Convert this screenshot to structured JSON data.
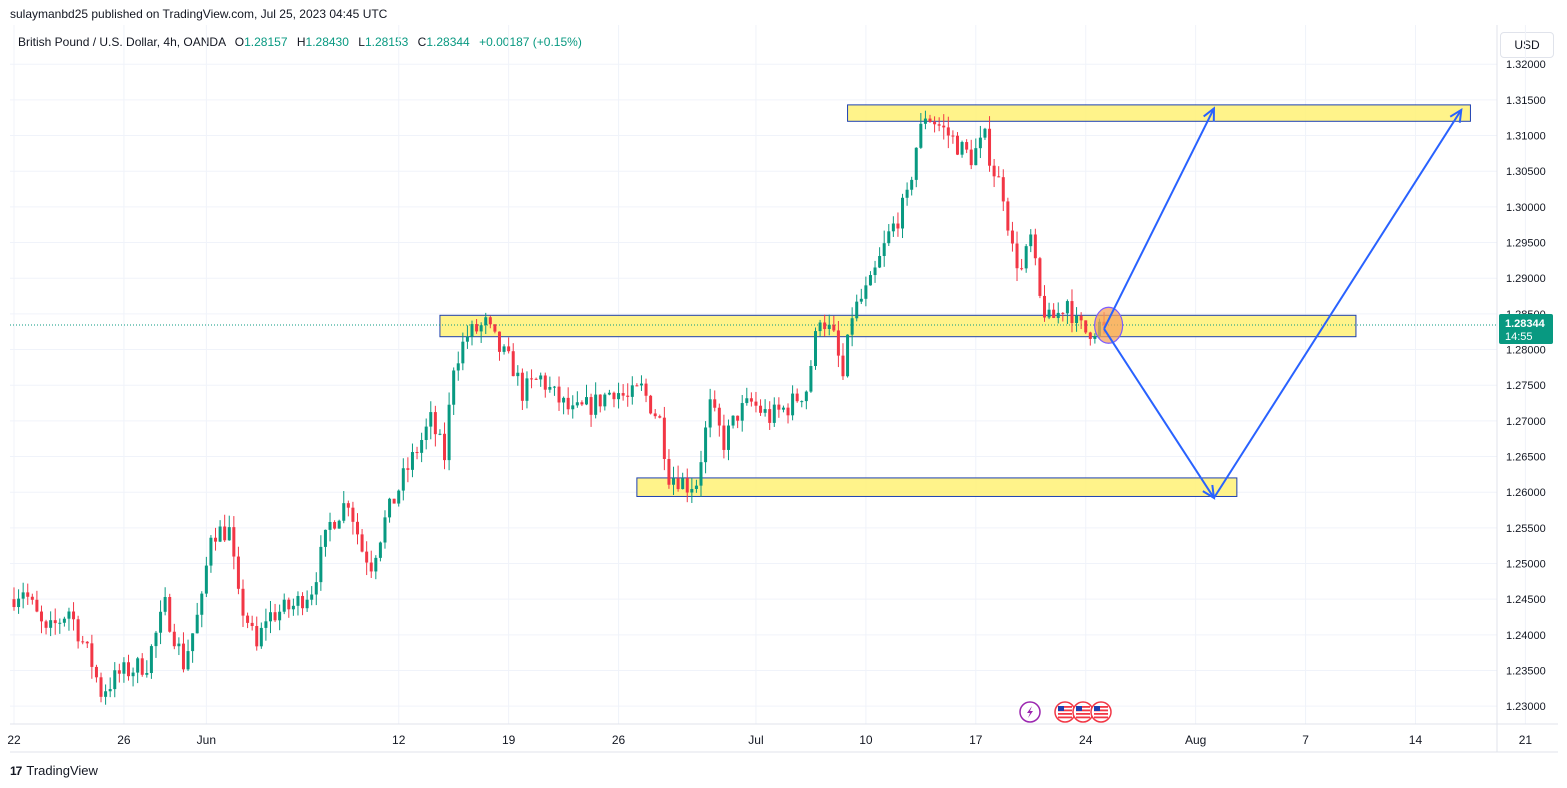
{
  "header": {
    "publisher_line": "sulaymanbd25 published on TradingView.com, Jul 25, 2023 04:45 UTC",
    "symbol": "British Pound / U.S. Dollar, 4h, OANDA",
    "open_label": "O",
    "open": "1.28157",
    "high_label": "H",
    "high": "1.28430",
    "low_label": "L",
    "low": "1.28153",
    "close_label": "C",
    "close": "1.28344",
    "change": "+0.00187 (+0.15%)",
    "currency": "USD"
  },
  "price_tag": {
    "price": "1.28344",
    "countdown": "14:55"
  },
  "footer": {
    "brand": "TradingView"
  },
  "colors": {
    "up": "#089981",
    "down": "#f23645",
    "zone": "#fff176",
    "zone_border": "#1e40af",
    "arrow": "#2962ff",
    "price_line": "#089981"
  },
  "icons": [
    "lightning-event-icon",
    "us-flag-event-icon",
    "us-flag-event-icon",
    "us-flag-event-icon"
  ],
  "chart_data": {
    "type": "candlestick",
    "timeframe": "4h",
    "y_axis": {
      "ylim": [
        1.2275,
        1.3255
      ],
      "ticks": [
        "1.32000",
        "1.31500",
        "1.31000",
        "1.30500",
        "1.30000",
        "1.29500",
        "1.29000",
        "1.28500",
        "1.28000",
        "1.27500",
        "1.27000",
        "1.26500",
        "1.26000",
        "1.25500",
        "1.25000",
        "1.24500",
        "1.24000",
        "1.23500",
        "1.23000"
      ]
    },
    "x_axis": {
      "ticks": [
        {
          "label": "22",
          "bar": 0
        },
        {
          "label": "26",
          "bar": 24
        },
        {
          "label": "Jun",
          "bar": 42
        },
        {
          "label": "12",
          "bar": 84
        },
        {
          "label": "19",
          "bar": 108
        },
        {
          "label": "26",
          "bar": 132
        },
        {
          "label": "Jul",
          "bar": 162
        },
        {
          "label": "10",
          "bar": 186
        },
        {
          "label": "17",
          "bar": 210
        },
        {
          "label": "24",
          "bar": 234
        },
        {
          "label": "Aug",
          "bar": 258
        },
        {
          "label": "7",
          "bar": 282
        },
        {
          "label": "14",
          "bar": 306
        },
        {
          "label": "21",
          "bar": 330
        }
      ]
    },
    "anchors": [
      [
        0,
        1.245
      ],
      [
        3,
        1.2465
      ],
      [
        8,
        1.24
      ],
      [
        13,
        1.2435
      ],
      [
        18,
        1.236
      ],
      [
        20,
        1.232
      ],
      [
        24,
        1.2345
      ],
      [
        30,
        1.236
      ],
      [
        34,
        1.244
      ],
      [
        38,
        1.236
      ],
      [
        42,
        1.2445
      ],
      [
        44,
        1.2545
      ],
      [
        48,
        1.2545
      ],
      [
        50,
        1.245
      ],
      [
        52,
        1.242
      ],
      [
        54,
        1.238
      ],
      [
        56,
        1.2425
      ],
      [
        62,
        1.244
      ],
      [
        66,
        1.2465
      ],
      [
        70,
        1.2555
      ],
      [
        74,
        1.259
      ],
      [
        77,
        1.252
      ],
      [
        79,
        1.25
      ],
      [
        82,
        1.256
      ],
      [
        86,
        1.262
      ],
      [
        89,
        1.266
      ],
      [
        92,
        1.27
      ],
      [
        95,
        1.265
      ],
      [
        97,
        1.278
      ],
      [
        100,
        1.282
      ],
      [
        104,
        1.2835
      ],
      [
        107,
        1.28
      ],
      [
        110,
        1.2775
      ],
      [
        112,
        1.274
      ],
      [
        116,
        1.276
      ],
      [
        119,
        1.2735
      ],
      [
        123,
        1.271
      ],
      [
        128,
        1.2725
      ],
      [
        132,
        1.2745
      ],
      [
        135,
        1.273
      ],
      [
        138,
        1.2745
      ],
      [
        142,
        1.27
      ],
      [
        144,
        1.2625
      ],
      [
        146,
        1.262
      ],
      [
        148,
        1.261
      ],
      [
        150,
        1.2615
      ],
      [
        153,
        1.272
      ],
      [
        156,
        1.267
      ],
      [
        159,
        1.271
      ],
      [
        162,
        1.2725
      ],
      [
        166,
        1.2705
      ],
      [
        170,
        1.272
      ],
      [
        174,
        1.2745
      ],
      [
        177,
        1.285
      ],
      [
        180,
        1.2815
      ],
      [
        182,
        1.276
      ],
      [
        184,
        1.285
      ],
      [
        188,
        1.289
      ],
      [
        192,
        1.296
      ],
      [
        196,
        1.301
      ],
      [
        198,
        1.3085
      ],
      [
        200,
        1.313
      ],
      [
        202,
        1.312
      ],
      [
        206,
        1.3095
      ],
      [
        208,
        1.308
      ],
      [
        210,
        1.307
      ],
      [
        213,
        1.3095
      ],
      [
        215,
        1.305
      ],
      [
        217,
        1.302
      ],
      [
        219,
        1.294
      ],
      [
        221,
        1.291
      ],
      [
        223,
        1.2955
      ],
      [
        225,
        1.287
      ],
      [
        227,
        1.284
      ],
      [
        229,
        1.285
      ],
      [
        231,
        1.287
      ],
      [
        233,
        1.2835
      ],
      [
        235,
        1.2825
      ],
      [
        238,
        1.2834
      ]
    ],
    "last_close": 1.28344,
    "zones": [
      {
        "name": "upper-resistance",
        "bar_start": 182,
        "bar_end": 318,
        "top": 1.3143,
        "bottom": 1.312
      },
      {
        "name": "middle-support-resistance",
        "bar_start": 93,
        "bar_end": 293,
        "top": 1.2848,
        "bottom": 1.2818
      },
      {
        "name": "lower-support",
        "bar_start": 136,
        "bar_end": 267,
        "top": 1.262,
        "bottom": 1.2594
      }
    ],
    "arrows": [
      {
        "from": [
          238,
          1.2829
        ],
        "to": [
          262,
          1.3138
        ]
      },
      {
        "from": [
          238,
          1.2829
        ],
        "to": [
          262,
          1.2592
        ]
      },
      {
        "from": [
          262,
          1.2592
        ],
        "to": [
          316,
          1.3136
        ]
      }
    ],
    "highlight": {
      "bar": 239,
      "price": 1.2834
    }
  }
}
